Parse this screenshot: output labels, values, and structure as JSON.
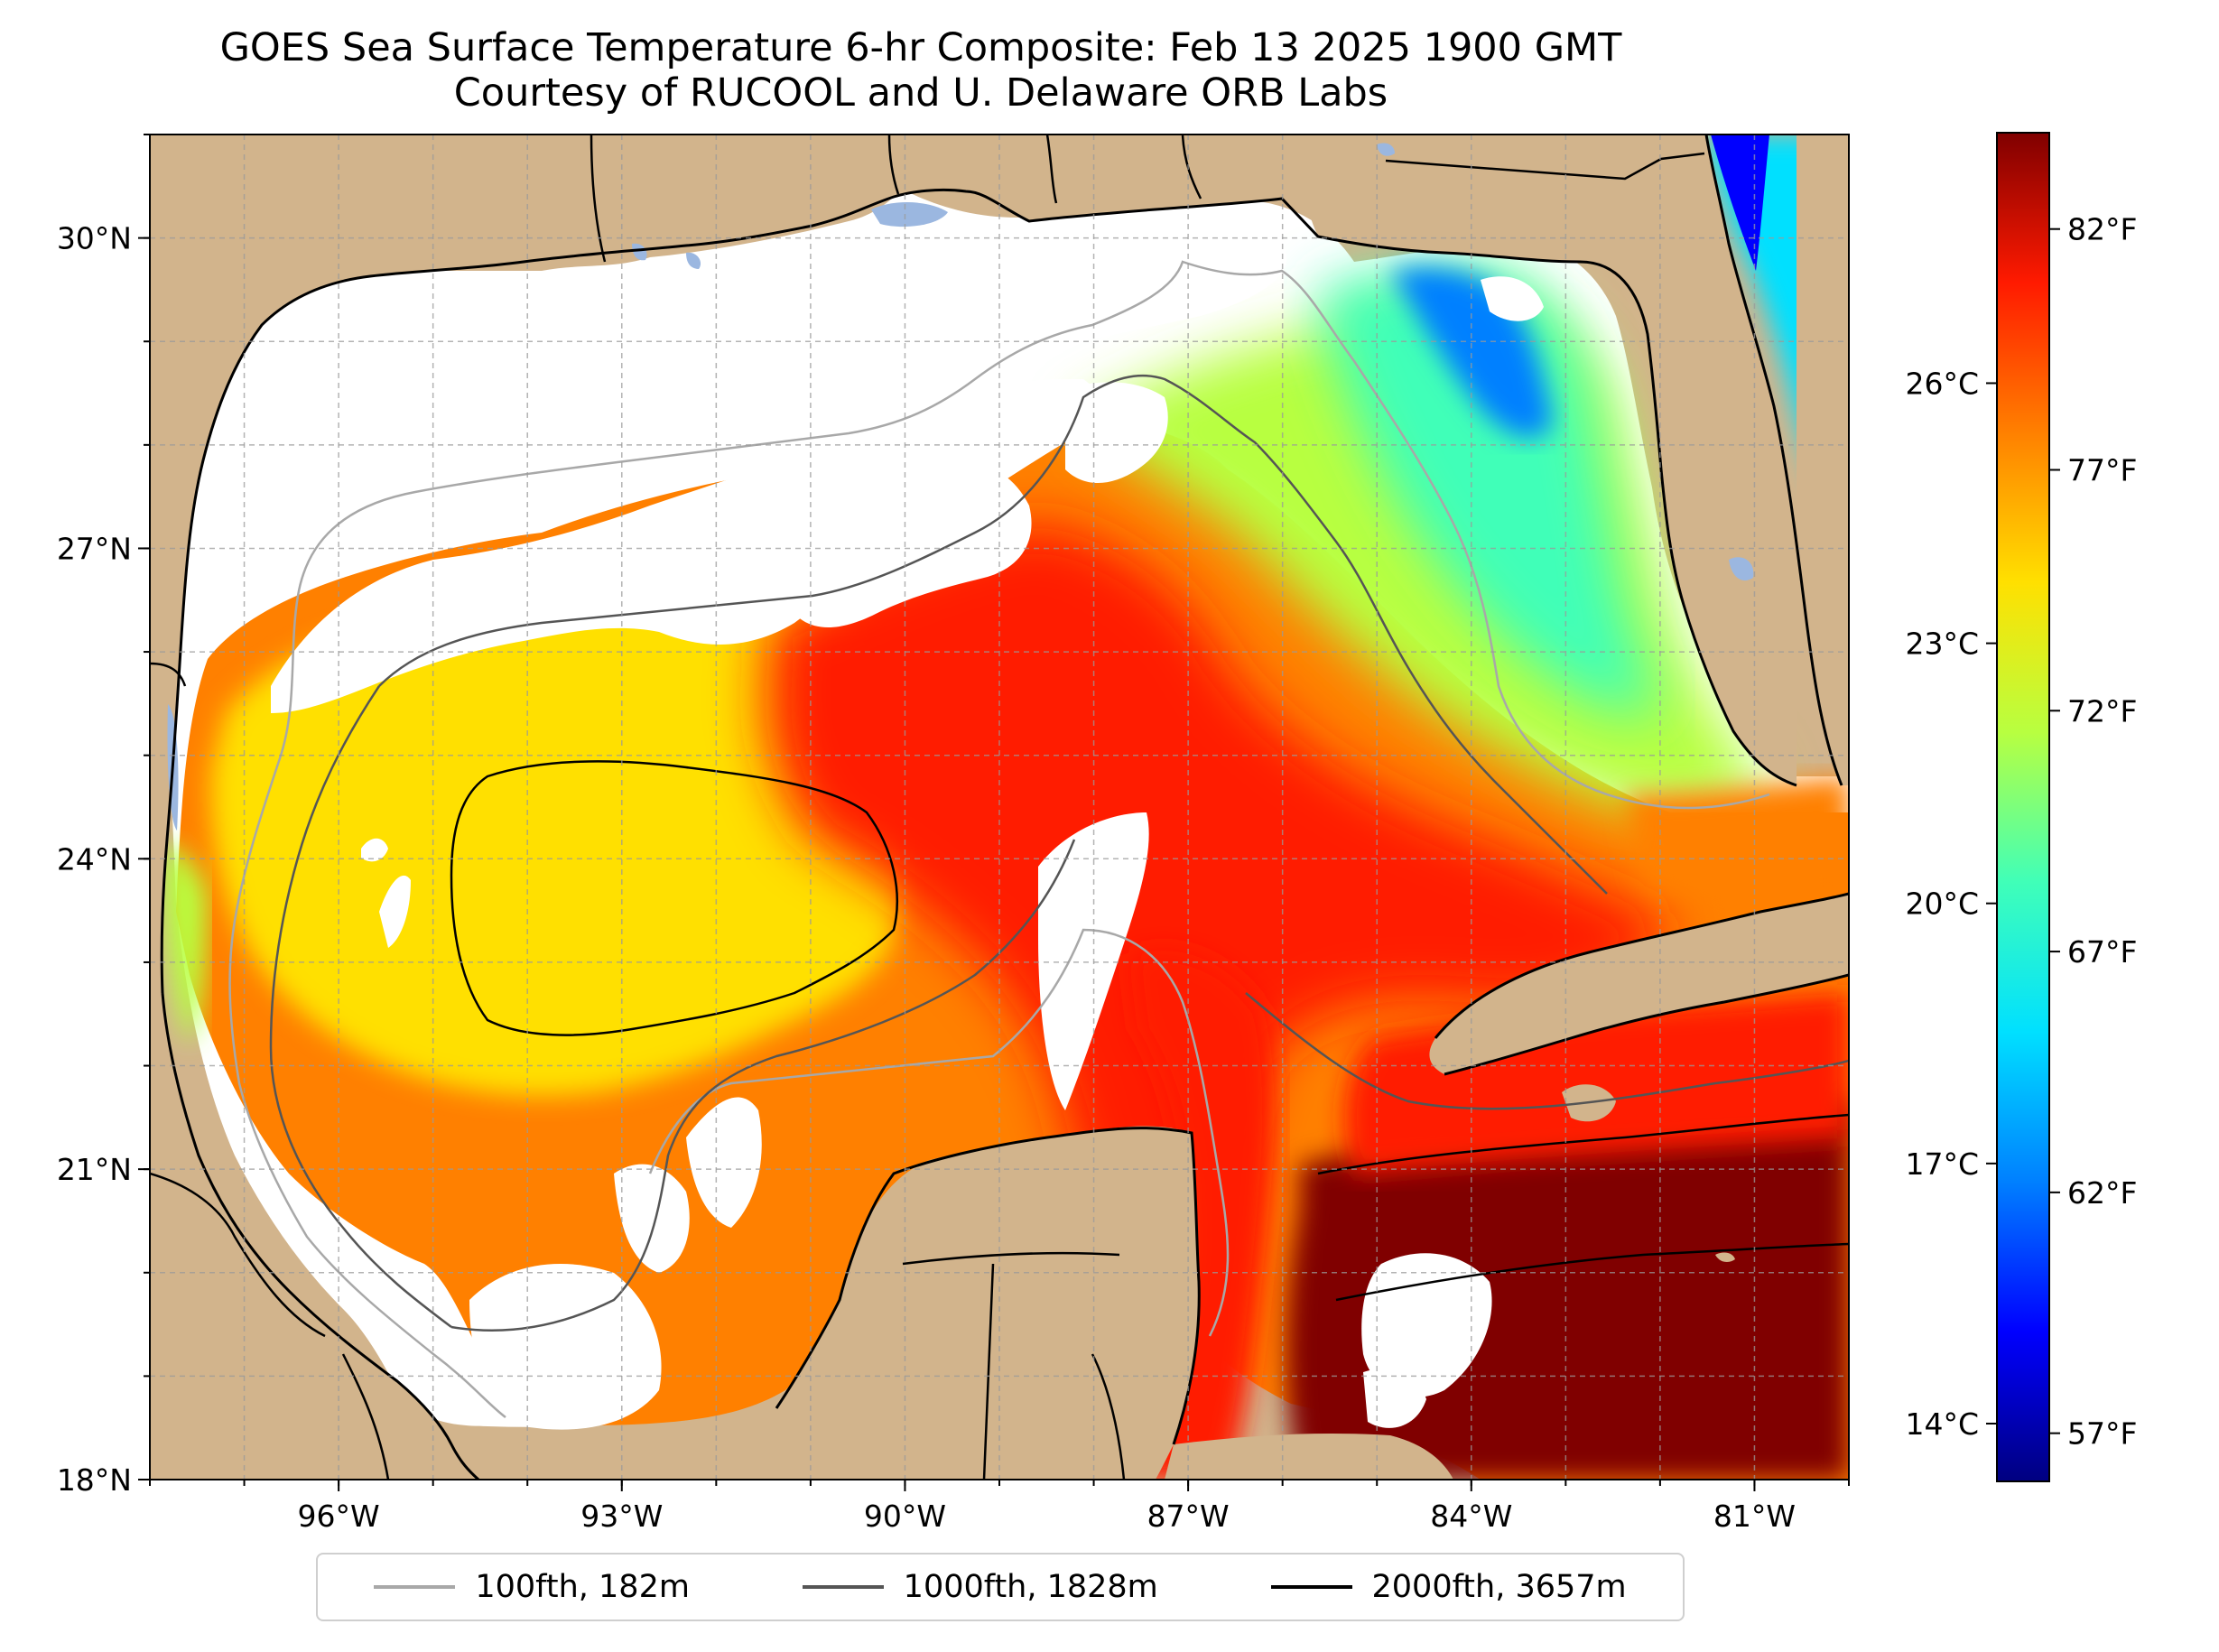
{
  "title": {
    "line1": "GOES Sea Surface Temperature 6-hr Composite: Feb 13 2025 1900 GMT",
    "line2": "Courtesy of RUCOOL and U. Delaware ORB Labs"
  },
  "map": {
    "region": "Gulf of Mexico",
    "lat_range": [
      18,
      31
    ],
    "lon_range": [
      -98,
      -80
    ],
    "lat_ticks": [
      {
        "value": 18,
        "label": "18°N"
      },
      {
        "value": 21,
        "label": "21°N"
      },
      {
        "value": 24,
        "label": "24°N"
      },
      {
        "value": 27,
        "label": "27°N"
      },
      {
        "value": 30,
        "label": "30°N"
      }
    ],
    "lon_ticks": [
      {
        "value": -96,
        "label": "96°W"
      },
      {
        "value": -93,
        "label": "93°W"
      },
      {
        "value": -90,
        "label": "90°W"
      },
      {
        "value": -87,
        "label": "87°W"
      },
      {
        "value": -84,
        "label": "84°W"
      },
      {
        "value": -81,
        "label": "81°W"
      }
    ],
    "colors": {
      "land": "#d2b48c",
      "no_data": "#ffffff",
      "inland_water": "#9bb7e0",
      "coast": "#000000",
      "grid": "#9a9a9a"
    }
  },
  "colorbar": {
    "range_f": [
      56,
      84
    ],
    "celsius_ticks": [
      {
        "value": 14,
        "label": "14°C"
      },
      {
        "value": 17,
        "label": "17°C"
      },
      {
        "value": 20,
        "label": "20°C"
      },
      {
        "value": 23,
        "label": "23°C"
      },
      {
        "value": 26,
        "label": "26°C"
      }
    ],
    "fahrenheit_ticks": [
      {
        "value": 57,
        "label": "57°F"
      },
      {
        "value": 62,
        "label": "62°F"
      },
      {
        "value": 67,
        "label": "67°F"
      },
      {
        "value": 72,
        "label": "72°F"
      },
      {
        "value": 77,
        "label": "77°F"
      },
      {
        "value": 82,
        "label": "82°F"
      }
    ],
    "colormap": [
      "#000080",
      "#0000ff",
      "#0080ff",
      "#00e0ff",
      "#40ffb8",
      "#b8ff40",
      "#ffe000",
      "#ff8000",
      "#ff1a00",
      "#800000"
    ]
  },
  "legend": [
    {
      "label": "100fth, 182m",
      "color": "#a8a8a8"
    },
    {
      "label": "1000fth, 1828m",
      "color": "#555555"
    },
    {
      "label": "2000fth, 3657m",
      "color": "#000000"
    }
  ]
}
